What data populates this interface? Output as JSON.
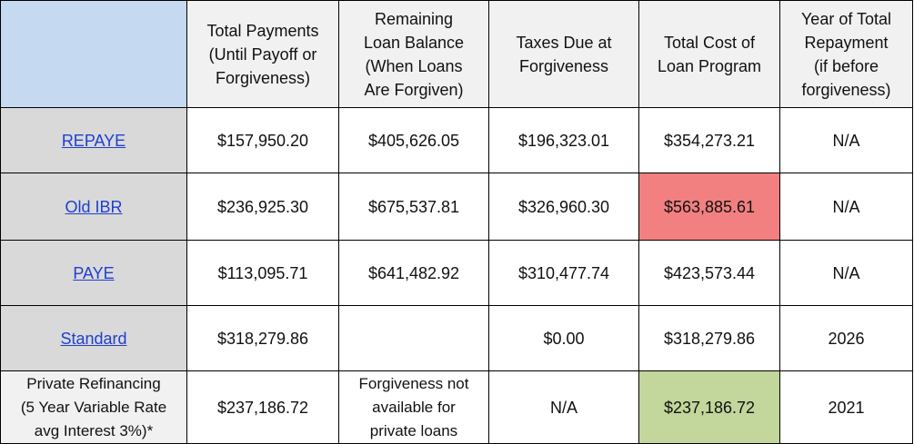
{
  "headers": {
    "total_payments": [
      "Total Payments",
      "(Until Payoff or",
      "Forgiveness)"
    ],
    "remaining_balance": [
      "Remaining",
      "Loan Balance",
      "(When Loans",
      "Are Forgiven)"
    ],
    "taxes_due": [
      "Taxes Due at",
      "Forgiveness"
    ],
    "total_cost": [
      "Total Cost of",
      "Loan Program"
    ],
    "year_repayment": [
      "Year of Total",
      "Repayment",
      "(if before",
      "forgiveness)"
    ]
  },
  "rows": [
    {
      "plan": "REPAYE",
      "total_payments": "$157,950.20",
      "remaining_balance": "$405,626.05",
      "taxes_due": "$196,323.01",
      "total_cost": "$354,273.21",
      "year": "N/A"
    },
    {
      "plan": "Old IBR",
      "total_payments": "$236,925.30",
      "remaining_balance": "$675,537.81",
      "taxes_due": "$326,960.30",
      "total_cost": "$563,885.61",
      "year": "N/A"
    },
    {
      "plan": "PAYE",
      "total_payments": "$113,095.71",
      "remaining_balance": "$641,482.92",
      "taxes_due": "$310,477.74",
      "total_cost": "$423,573.44",
      "year": "N/A"
    },
    {
      "plan": "Standard",
      "total_payments": "$318,279.86",
      "remaining_balance": "",
      "taxes_due": "$0.00",
      "total_cost": "$318,279.86",
      "year": "2026"
    },
    {
      "plan": [
        "Private Refinancing",
        "(5 Year Variable Rate",
        "avg Interest 3%)*"
      ],
      "total_payments": "$237,186.72",
      "remaining_balance": [
        "Forgiveness not",
        "available for",
        "private loans"
      ],
      "taxes_due": "N/A",
      "total_cost": "$237,186.72",
      "year": "2021"
    }
  ],
  "highlight_colors": {
    "highest_cost": "#f28080",
    "lowest_cost": "#c3d69b",
    "header_corner": "#c5d9f1",
    "plan_column": "#d9d9d9",
    "link": "#1f3fd1"
  }
}
